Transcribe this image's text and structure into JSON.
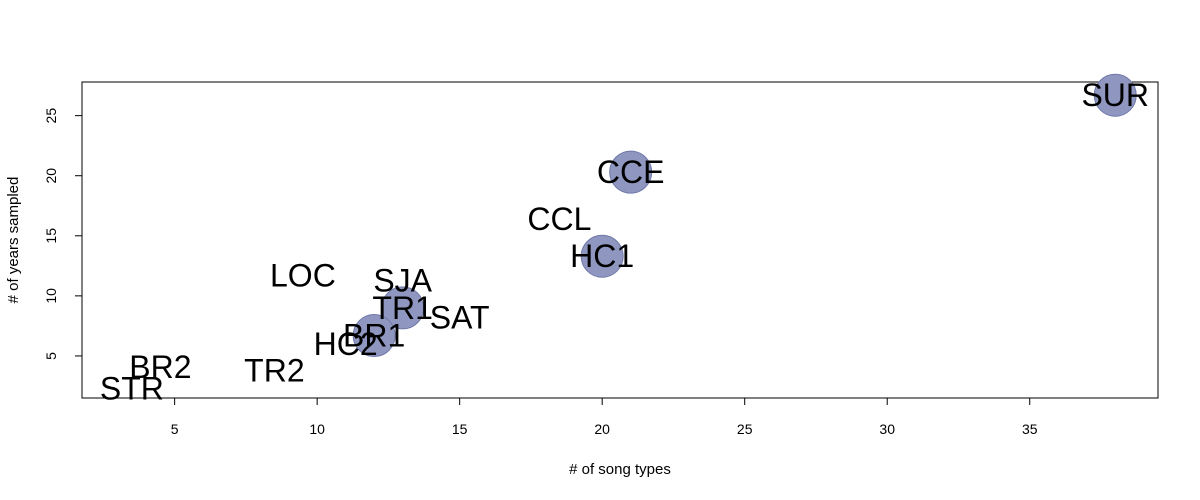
{
  "chart_data": {
    "type": "scatter",
    "title": "",
    "xlabel": "# of song types",
    "ylabel": "# of years sampled",
    "xlim": [
      1.75,
      39.5
    ],
    "ylim": [
      1.5,
      27.8
    ],
    "x_ticks": [
      5,
      10,
      15,
      20,
      25,
      30,
      35
    ],
    "y_ticks": [
      5,
      10,
      15,
      20,
      25
    ],
    "grid": false,
    "bubble_color": "#8f97c0",
    "bubble_stroke": "#6f78a8",
    "points": [
      {
        "label": "SUR",
        "x": 38,
        "y": 26.7,
        "bubble": true
      },
      {
        "label": "CCE",
        "x": 21,
        "y": 20.3,
        "bubble": true
      },
      {
        "label": "CCL",
        "x": 18.5,
        "y": 16.4,
        "bubble": false
      },
      {
        "label": "HC1",
        "x": 20,
        "y": 13.3,
        "bubble": true
      },
      {
        "label": "LOC",
        "x": 9.5,
        "y": 11.7,
        "bubble": false
      },
      {
        "label": "SJA",
        "x": 13,
        "y": 11.3,
        "bubble": false
      },
      {
        "label": "TR1",
        "x": 13,
        "y": 9,
        "bubble": true
      },
      {
        "label": "SAT",
        "x": 15,
        "y": 8.2,
        "bubble": false
      },
      {
        "label": "BR1",
        "x": 12,
        "y": 6.7,
        "bubble": true
      },
      {
        "label": "HC2",
        "x": 11,
        "y": 6,
        "bubble": false
      },
      {
        "label": "BR2",
        "x": 4.5,
        "y": 4.1,
        "bubble": false
      },
      {
        "label": "TR2",
        "x": 8.5,
        "y": 3.8,
        "bubble": false
      },
      {
        "label": "STR",
        "x": 3.5,
        "y": 2.3,
        "bubble": false
      }
    ]
  }
}
